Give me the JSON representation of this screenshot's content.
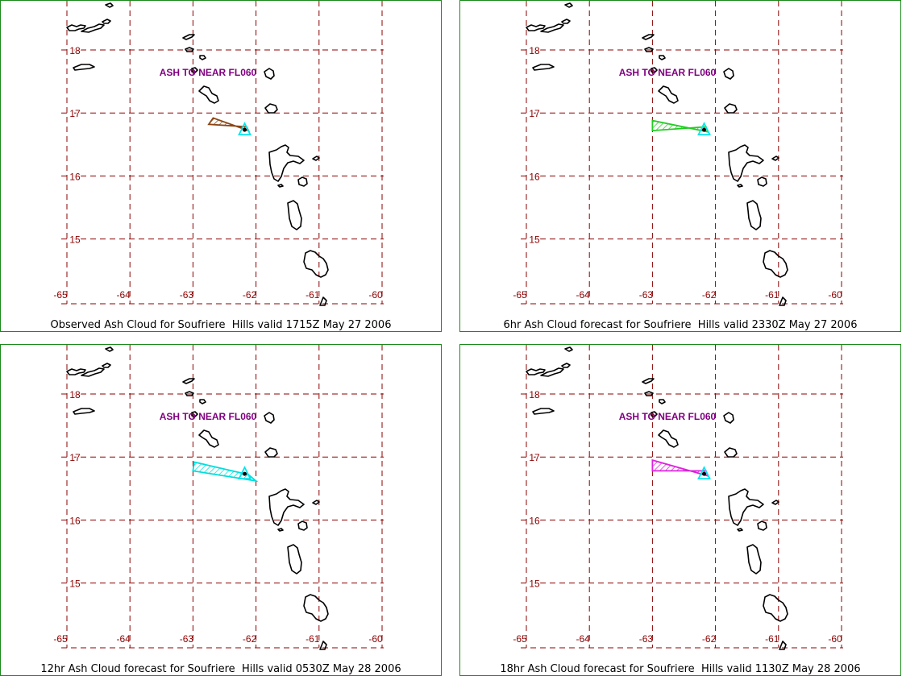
{
  "colors": {
    "frame": "#1a8a1a",
    "grid": "#8b0000",
    "label": "#8b0000",
    "annotation": "#800080",
    "volcano": "#00e5ee",
    "coast": "#000000"
  },
  "axes": {
    "lon_ticks": [
      -65,
      -64,
      -63,
      -62,
      -61,
      -60
    ],
    "lat_ticks": [
      18,
      17,
      16,
      15
    ],
    "lon_labels": [
      "-65",
      "-64",
      "-63",
      "-62",
      "-61",
      "-60"
    ],
    "lat_labels": [
      "18",
      "17",
      "16",
      "15"
    ]
  },
  "volcano": {
    "name": "Soufriere Hills",
    "lon": -62.18,
    "lat": 16.72
  },
  "panels": [
    {
      "caption": "Observed Ash Cloud for Soufriere  Hills valid 1715Z May 27 2006",
      "annotation": "ASH TO NEAR FL060",
      "ash_color": "#8b4513",
      "ash_polygon": [
        [
          -62.15,
          16.78
        ],
        [
          -62.75,
          16.82
        ],
        [
          -62.68,
          16.92
        ],
        [
          -62.12,
          16.72
        ]
      ]
    },
    {
      "caption": "6hr Ash Cloud forecast for Soufriere  Hills valid 2330Z May 27 2006",
      "annotation": "ASH TO NEAR FL060",
      "ash_color": "#22cc22",
      "ash_polygon": [
        [
          -62.15,
          16.78
        ],
        [
          -63.0,
          16.72
        ],
        [
          -63.0,
          16.88
        ],
        [
          -62.12,
          16.7
        ]
      ]
    },
    {
      "caption": "12hr Ash Cloud forecast for Soufriere  Hills valid 0530Z May 28 2006",
      "annotation": "ASH TO NEAR FL060",
      "ash_color": "#00dddd",
      "ash_polygon": [
        [
          -62.0,
          16.62
        ],
        [
          -63.0,
          16.78
        ],
        [
          -62.98,
          16.92
        ],
        [
          -62.12,
          16.72
        ]
      ]
    },
    {
      "caption": "18hr Ash Cloud forecast for Soufriere  Hills valid 1130Z May 28 2006",
      "annotation": "ASH TO NEAR FL060",
      "ash_color": "#dd22dd",
      "ash_polygon": [
        [
          -62.15,
          16.78
        ],
        [
          -63.0,
          16.78
        ],
        [
          -63.0,
          16.95
        ],
        [
          -62.12,
          16.7
        ]
      ]
    }
  ]
}
